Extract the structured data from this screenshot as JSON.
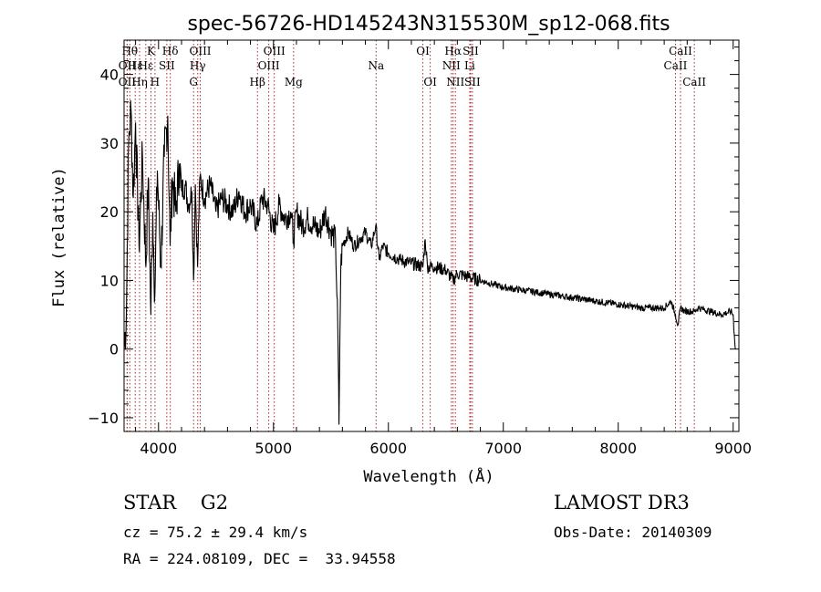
{
  "chart_data": {
    "type": "line",
    "title": "spec-56726-HD145243N315530M_sp12-068.fits",
    "xlabel": "Wavelength (Å)",
    "ylabel": "Flux (relative)",
    "xlim": [
      3700,
      9050
    ],
    "ylim": [
      -12,
      45
    ],
    "x_ticks": [
      4000,
      5000,
      6000,
      7000,
      8000,
      9000
    ],
    "y_ticks": [
      -10,
      0,
      10,
      20,
      30,
      40
    ],
    "line_color": "#000000",
    "marker_color": "#a52a2a",
    "series": [
      {
        "name": "flux",
        "x": [
          3700,
          3720,
          3740,
          3760,
          3780,
          3800,
          3830,
          3860,
          3890,
          3910,
          3933,
          3950,
          3968,
          3990,
          4020,
          4050,
          4080,
          4101,
          4120,
          4150,
          4180,
          4200,
          4230,
          4260,
          4290,
          4305,
          4320,
          4340,
          4360,
          4400,
          4450,
          4500,
          4550,
          4600,
          4650,
          4700,
          4750,
          4800,
          4861,
          4900,
          4950,
          5000,
          5050,
          5100,
          5150,
          5175,
          5200,
          5250,
          5300,
          5350,
          5400,
          5450,
          5500,
          5540,
          5560,
          5570,
          5578,
          5586,
          5600,
          5650,
          5700,
          5750,
          5800,
          5850,
          5890,
          5920,
          5950,
          6000,
          6100,
          6200,
          6300,
          6320,
          6340,
          6400,
          6500,
          6563,
          6600,
          6700,
          6800,
          6900,
          7000,
          7200,
          7400,
          7600,
          7800,
          8000,
          8200,
          8400,
          8460,
          8498,
          8520,
          8542,
          8580,
          8662,
          8700,
          8800,
          8900,
          8980,
          9000,
          9010,
          9020
        ],
        "y": [
          0,
          5,
          30,
          35,
          22,
          33,
          15,
          28,
          12,
          25,
          5,
          20,
          8,
          26,
          12,
          28,
          34,
          15,
          25,
          20,
          27,
          23,
          24,
          21,
          23,
          10,
          24,
          12,
          25,
          22,
          24,
          20,
          22,
          21,
          20,
          23,
          20,
          21,
          18,
          22,
          21,
          17,
          21,
          19,
          20,
          16,
          20,
          18,
          19,
          18,
          17,
          20,
          17,
          16,
          3,
          -11,
          2,
          12,
          15,
          17,
          15,
          16,
          17,
          15,
          18,
          13,
          15,
          14,
          13,
          12.5,
          12,
          16,
          12,
          12,
          11.5,
          10,
          11,
          10.5,
          10,
          9.5,
          9,
          8.5,
          8,
          7.5,
          7,
          6.5,
          6,
          6,
          7,
          5,
          3.5,
          6,
          5.5,
          5.5,
          6,
          5.5,
          5,
          5.5,
          5,
          2,
          0
        ]
      }
    ],
    "spectral_lines": [
      {
        "label": "Hθ",
        "x": 3750,
        "row": 1
      },
      {
        "label": "OII",
        "x": 3727,
        "row": 2
      },
      {
        "label": "OII",
        "x": 3727,
        "row": 3
      },
      {
        "label": "Hε",
        "x": 3797,
        "row": 2
      },
      {
        "label": "Hη",
        "x": 3835,
        "row": 3
      },
      {
        "label": "K",
        "x": 3934,
        "row": 1
      },
      {
        "label": "Hε",
        "x": 3889,
        "row": 2
      },
      {
        "label": "SII",
        "x": 4072,
        "row": 2
      },
      {
        "label": "H",
        "x": 3969,
        "row": 3
      },
      {
        "label": "Hδ",
        "x": 4102,
        "row": 1
      },
      {
        "label": "OIII",
        "x": 4363,
        "row": 1
      },
      {
        "label": "Hγ",
        "x": 4341,
        "row": 2
      },
      {
        "label": "G",
        "x": 4305,
        "row": 3
      },
      {
        "label": "OIII",
        "x": 5007,
        "row": 1
      },
      {
        "label": "OIII",
        "x": 4959,
        "row": 2
      },
      {
        "label": "Hβ",
        "x": 4861,
        "row": 3
      },
      {
        "label": "Mg",
        "x": 5175,
        "row": 3
      },
      {
        "label": "Na",
        "x": 5893,
        "row": 2
      },
      {
        "label": "OI",
        "x": 6300,
        "row": 1
      },
      {
        "label": "OI",
        "x": 6364,
        "row": 3
      },
      {
        "label": "Hα",
        "x": 6563,
        "row": 1
      },
      {
        "label": "SII",
        "x": 6716,
        "row": 1
      },
      {
        "label": "NII",
        "x": 6548,
        "row": 2
      },
      {
        "label": "Li",
        "x": 6708,
        "row": 2
      },
      {
        "label": "NII",
        "x": 6583,
        "row": 3
      },
      {
        "label": "SII",
        "x": 6731,
        "row": 3
      },
      {
        "label": "CaII",
        "x": 8542,
        "row": 1
      },
      {
        "label": "CaII",
        "x": 8498,
        "row": 2
      },
      {
        "label": "CaII",
        "x": 8662,
        "row": 3
      }
    ]
  },
  "info": {
    "class_line": "STAR    G2",
    "cz_line": "cz = 75.2 ± 29.4 km/s",
    "coords_line": "RA = 224.08109, DEC =  33.94558",
    "survey": "LAMOST DR3",
    "obs_date": "Obs-Date: 20140309"
  }
}
